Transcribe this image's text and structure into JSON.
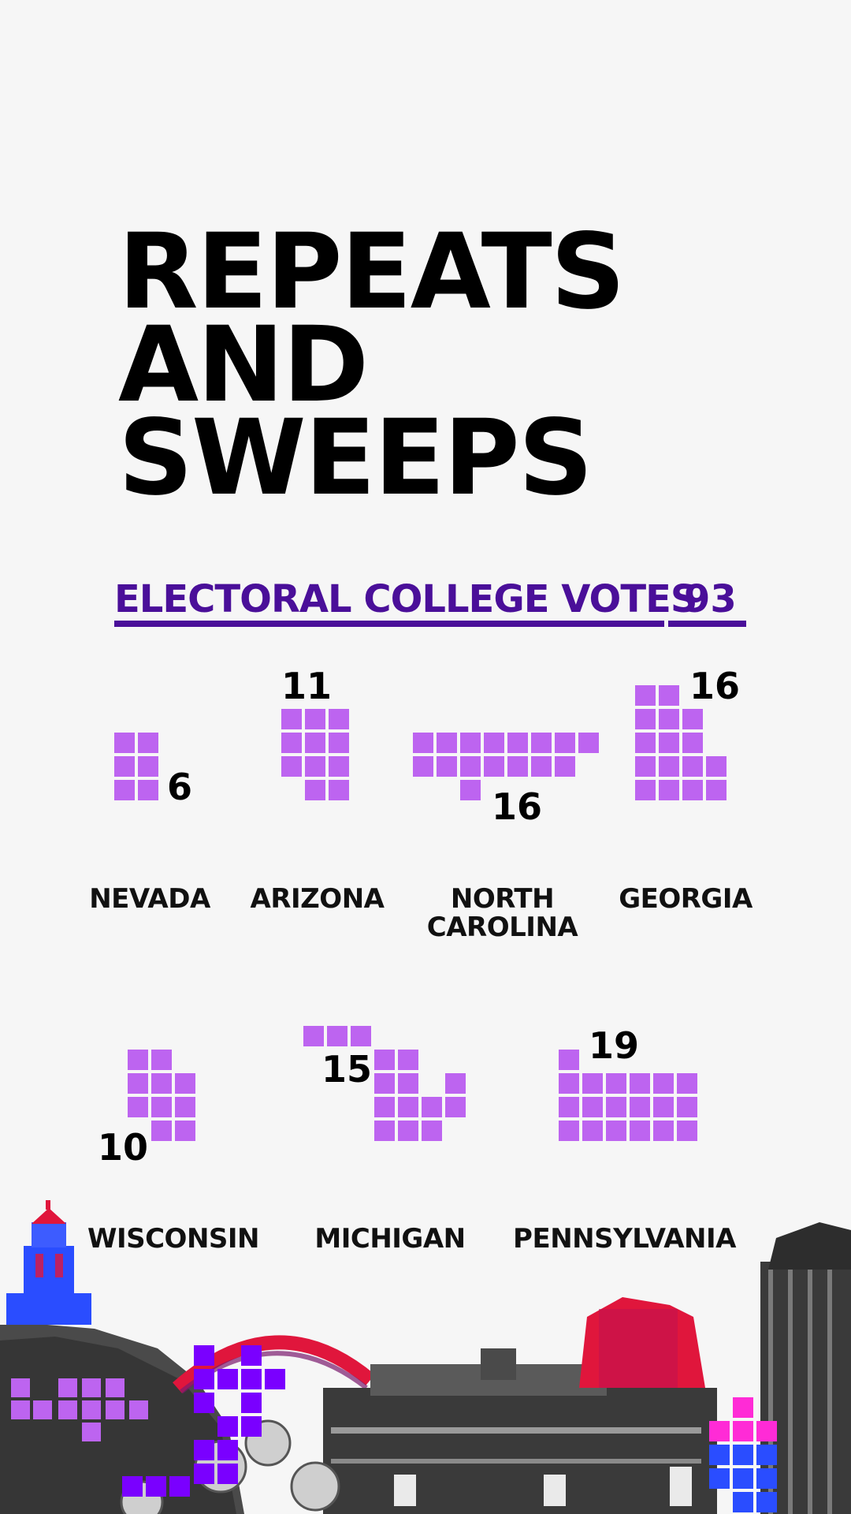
{
  "title": {
    "lines": [
      "REPEATS",
      "AND",
      "SWEEPS"
    ]
  },
  "electoral_votes": {
    "label": "ELECTORAL COLLEGE VOTES",
    "total": "93"
  },
  "states": [
    {
      "name": "NEVADA",
      "votes": "6"
    },
    {
      "name": "ARIZONA",
      "votes": "11"
    },
    {
      "name": "NORTH\nCAROLINA",
      "name_line1": "NORTH",
      "name_line2": "CAROLINA",
      "votes": "16"
    },
    {
      "name": "GEORGIA",
      "votes": "16"
    },
    {
      "name": "WISCONSIN",
      "votes": "10"
    },
    {
      "name": "MICHIGAN",
      "votes": "15"
    },
    {
      "name": "PENNSYLVANIA",
      "votes": "19"
    }
  ],
  "colors": {
    "accent": "#4a0f99",
    "square": "#bd64f0",
    "background": "#f6f6f6",
    "skyline_red": "#e0163c",
    "skyline_blue": "#2a4dff",
    "skyline_magenta": "#ff2bd6"
  },
  "icons": [
    "lighthouse-icon",
    "city-skyline-icon",
    "flowers-icon"
  ]
}
